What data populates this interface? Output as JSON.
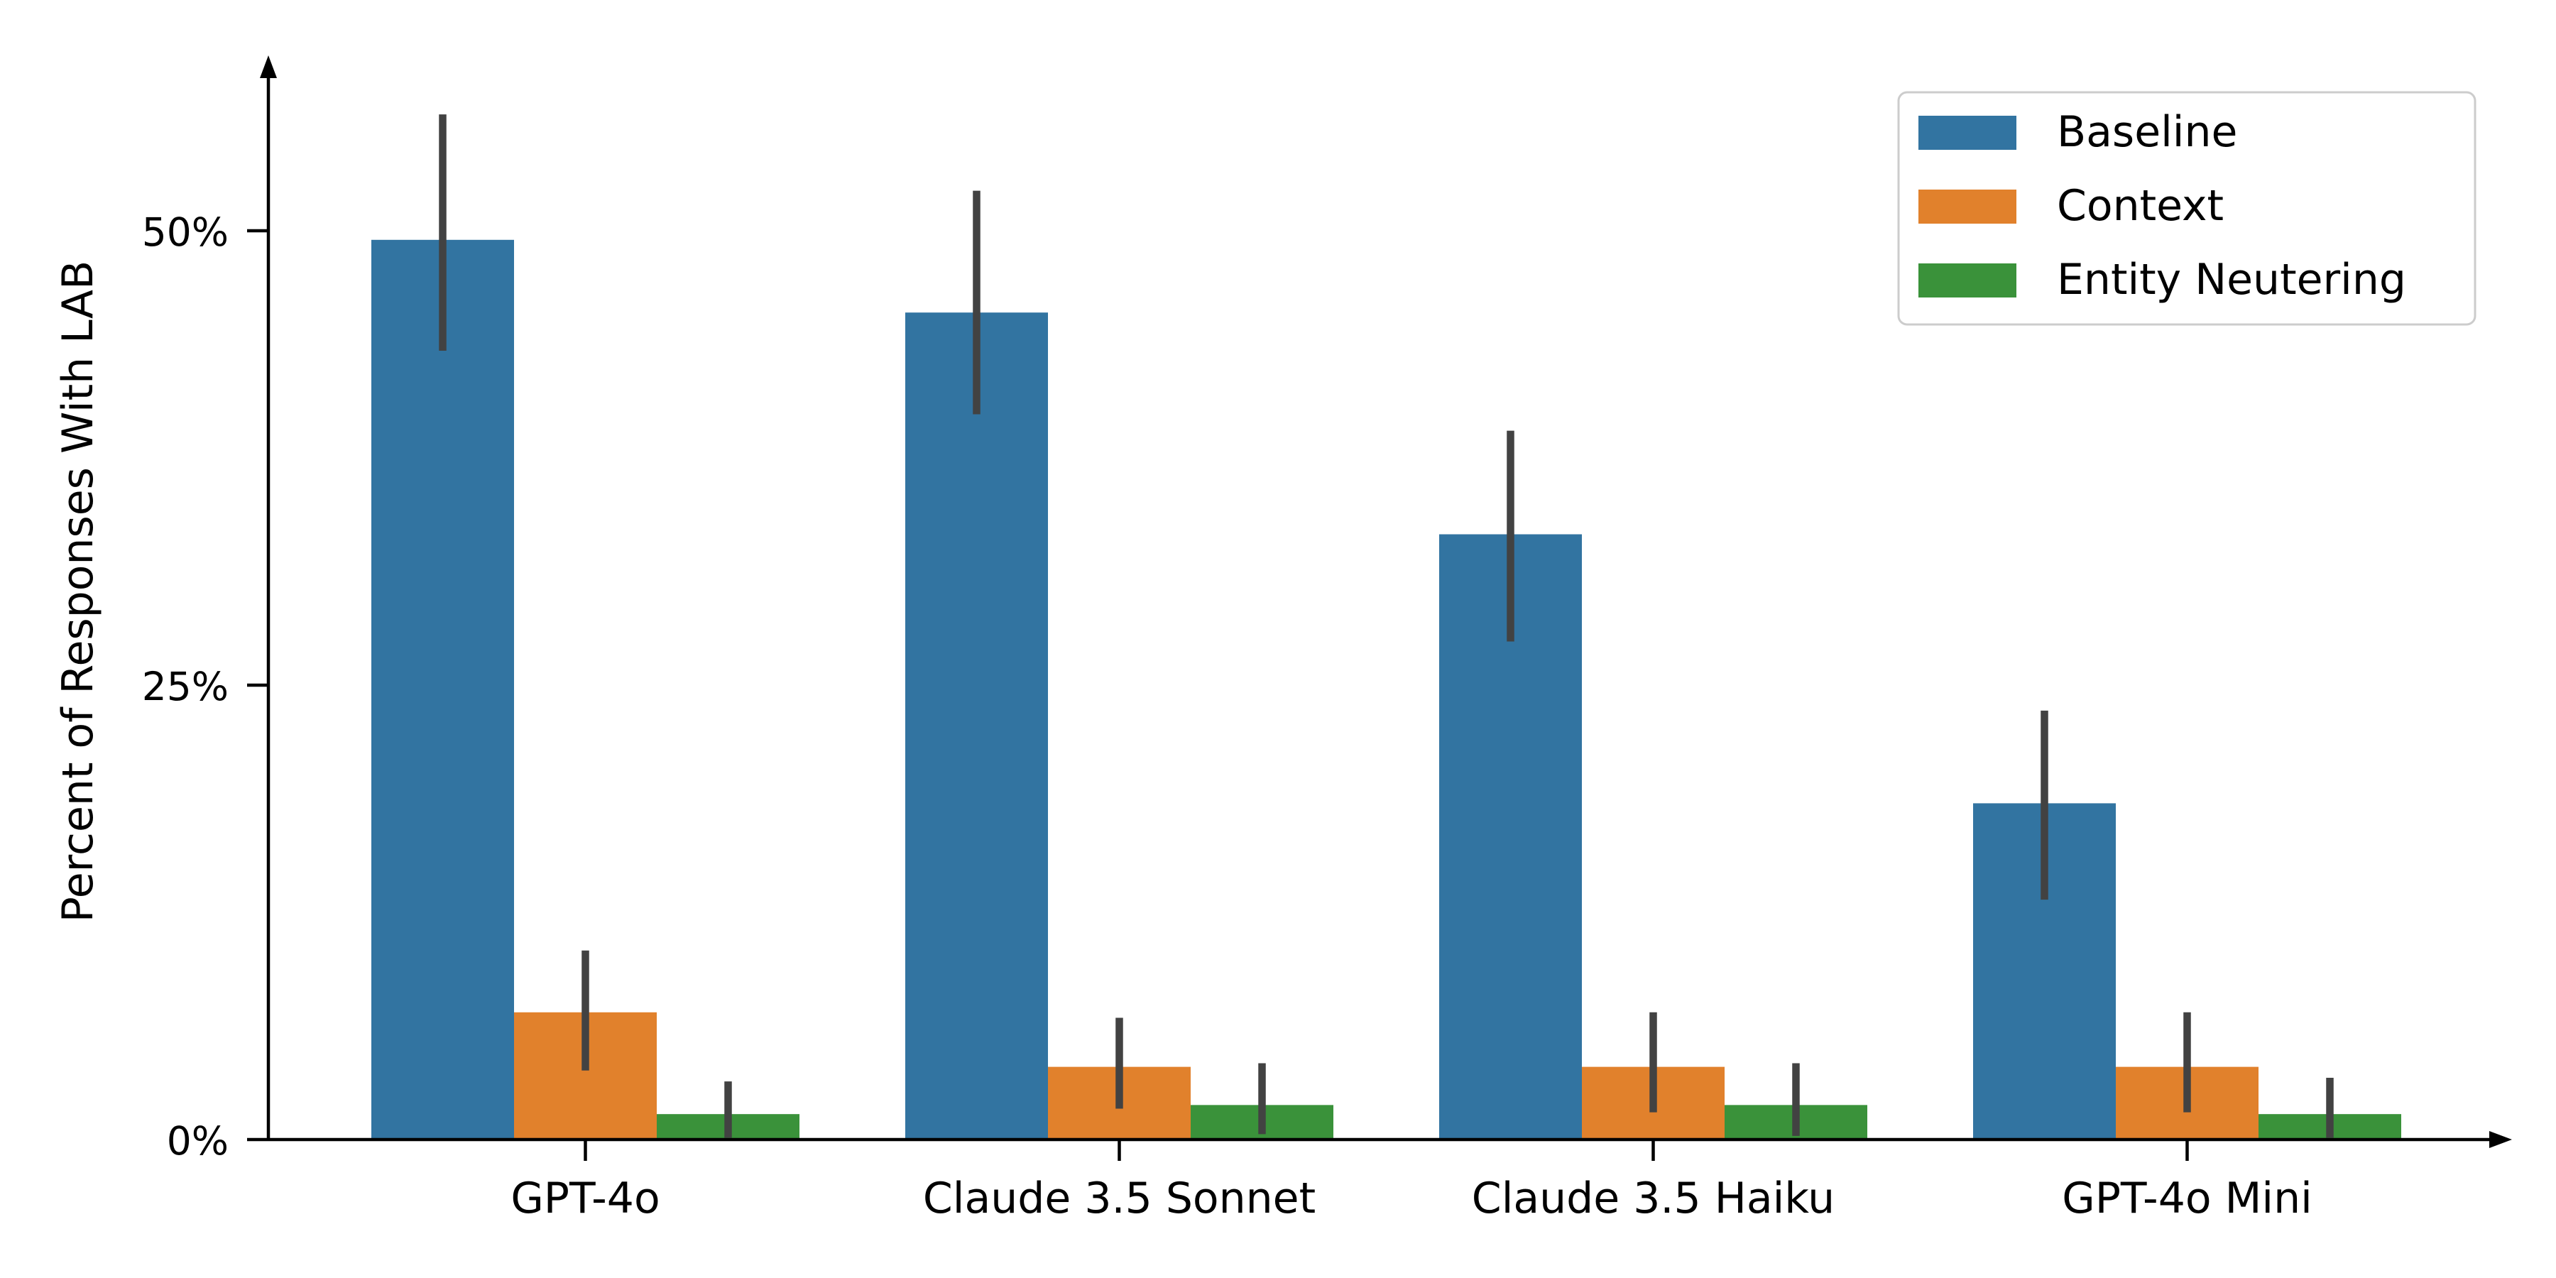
{
  "chart_data": {
    "type": "bar",
    "title": "",
    "xlabel": "",
    "ylabel": "Percent of Responses With LAB",
    "categories": [
      "GPT-4o",
      "Claude 3.5 Sonnet",
      "Claude 3.5 Haiku",
      "GPT-4o Mini"
    ],
    "yticks": [
      {
        "value": 0,
        "label": "0%"
      },
      {
        "value": 25,
        "label": "25%"
      },
      {
        "value": 50,
        "label": "50%"
      }
    ],
    "ylim": [
      0,
      57
    ],
    "grid": false,
    "legend_position": "top-right",
    "series": [
      {
        "name": "Baseline",
        "color": "#3274a1",
        "values": [
          49.5,
          45.5,
          33.3,
          18.5
        ],
        "ci_low": [
          43.4,
          39.9,
          27.4,
          13.2
        ],
        "ci_high": [
          56.4,
          52.2,
          39.0,
          23.6
        ]
      },
      {
        "name": "Context",
        "color": "#e1812c",
        "values": [
          7.0,
          4.0,
          4.0,
          4.0
        ],
        "ci_low": [
          3.8,
          1.7,
          1.5,
          1.5
        ],
        "ci_high": [
          10.4,
          6.7,
          7.0,
          7.0
        ]
      },
      {
        "name": "Entity Neutering",
        "color": "#3a923a",
        "values": [
          1.4,
          1.9,
          1.9,
          1.4
        ],
        "ci_low": [
          0.1,
          0.3,
          0.2,
          0.1
        ],
        "ci_high": [
          3.2,
          4.2,
          4.2,
          3.4
        ]
      }
    ]
  }
}
